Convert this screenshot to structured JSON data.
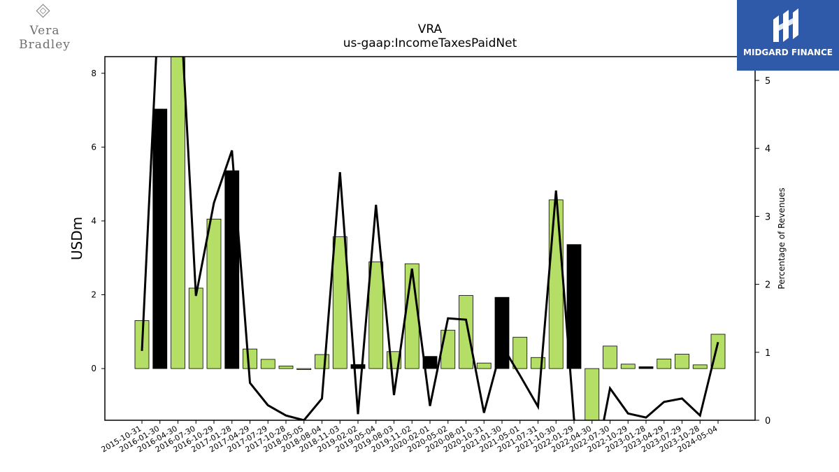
{
  "header": {
    "title": "VRA",
    "subtitle": "us-gaap:IncomeTaxesPaidNet"
  },
  "brands": {
    "left": "Vera Bradley",
    "left_icon": "vera-bradley-diamond-logo",
    "right": "MIDGARD FINANCE",
    "right_icon": "midgard-m-logo"
  },
  "colors": {
    "positive_bar": "#b5de67",
    "negative_bar": "#000000",
    "line": "#000000",
    "logo_bg": "#2f5aa9"
  },
  "chart_data": {
    "type": "bar",
    "title": "VRA",
    "subtitle": "us-gaap:IncomeTaxesPaidNet",
    "ylabel": "USDm",
    "y2label": "Percentage of Revenues",
    "ylim": [
      -1.4,
      8.45
    ],
    "y2lim": [
      0,
      5.35
    ],
    "yticks": [
      0,
      2,
      4,
      6,
      8
    ],
    "y2ticks": [
      0,
      1,
      2,
      3,
      4,
      5
    ],
    "grid": false,
    "categories": [
      "2015-10-31",
      "2016-01-30",
      "2016-04-30",
      "2016-07-30",
      "2016-10-29",
      "2017-01-28",
      "2017-04-29",
      "2017-07-29",
      "2017-10-28",
      "2018-05-05",
      "2018-08-04",
      "2018-11-03",
      "2019-02-02",
      "2019-05-04",
      "2019-08-03",
      "2019-11-02",
      "2020-02-01",
      "2020-05-02",
      "2020-08-01",
      "2020-10-31",
      "2021-01-30",
      "2021-05-01",
      "2021-07-31",
      "2021-10-30",
      "2022-01-29",
      "2022-04-30",
      "2022-07-30",
      "2022-10-29",
      "2023-01-28",
      "2023-04-29",
      "2023-07-29",
      "2023-10-28",
      "2024-05-04"
    ],
    "series": [
      {
        "type": "bar",
        "axis": "left",
        "values": [
          1.3,
          7.03,
          8.7,
          2.18,
          4.05,
          5.36,
          0.53,
          0.25,
          0.07,
          -0.02,
          0.38,
          3.57,
          0.11,
          2.89,
          0.46,
          2.84,
          0.33,
          1.04,
          1.98,
          0.15,
          1.93,
          0.85,
          0.3,
          4.57,
          3.36,
          -1.8,
          0.61,
          0.12,
          0.05,
          0.26,
          0.39,
          0.1,
          0.93
        ],
        "highlight": [
          false,
          true,
          false,
          false,
          false,
          true,
          false,
          false,
          false,
          false,
          false,
          false,
          true,
          false,
          false,
          false,
          true,
          false,
          false,
          false,
          true,
          false,
          false,
          false,
          true,
          false,
          false,
          false,
          true,
          false,
          false,
          false,
          false
        ]
      },
      {
        "type": "line",
        "axis": "right",
        "values": [
          1.02,
          6.5,
          6.8,
          1.83,
          3.2,
          3.97,
          0.55,
          0.22,
          0.07,
          0.0,
          0.32,
          3.65,
          0.09,
          3.17,
          0.37,
          2.23,
          0.21,
          1.5,
          1.48,
          0.11,
          1.1,
          0.66,
          0.2,
          3.38,
          0.02,
          -0.9,
          0.47,
          0.1,
          0.04,
          0.27,
          0.32,
          0.07,
          1.15
        ]
      }
    ]
  }
}
